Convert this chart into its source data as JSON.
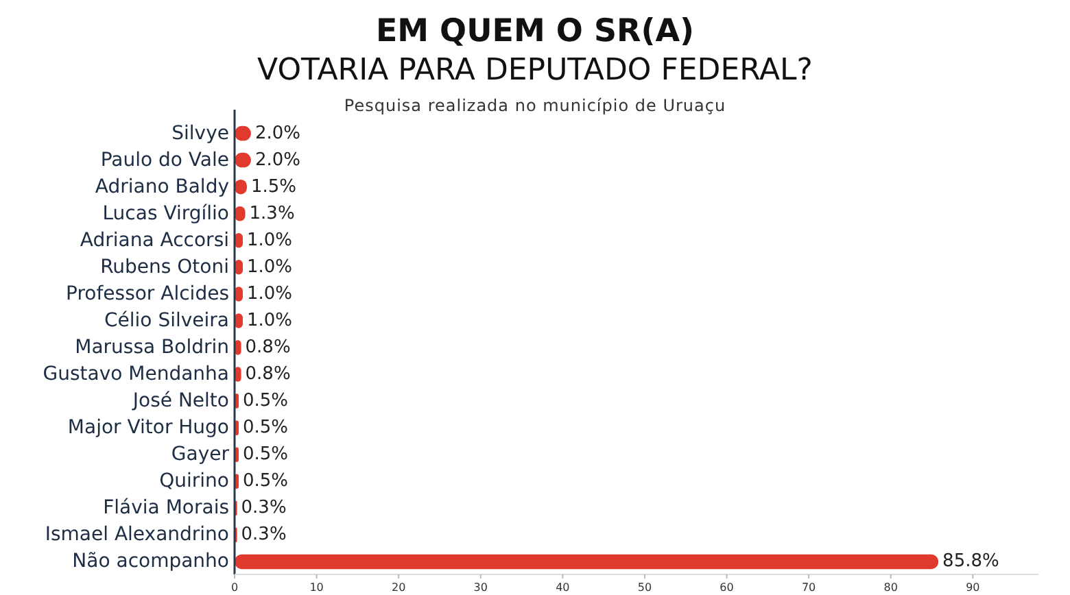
{
  "chart_data": {
    "type": "bar",
    "orientation": "horizontal",
    "title": "EM QUEM O SR(A)\nVOTARIA PARA DEPUTADO FEDERAL?",
    "subtitle": "Pesquisa realizada no município de Uruaçu",
    "categories": [
      "Silvye",
      "Paulo do Vale",
      "Adriano Baldy",
      "Lucas Virgílio",
      "Adriana Accorsi",
      "Rubens Otoni",
      "Professor Alcides",
      "Célio Silveira",
      "Marussa Boldrin",
      "Gustavo Mendanha",
      "José Nelto",
      "Major Vitor Hugo",
      "Gayer",
      "Quirino",
      "Flávia Morais",
      "Ismael Alexandrino",
      "Não acompanho"
    ],
    "values": [
      2.0,
      2.0,
      1.5,
      1.3,
      1.0,
      1.0,
      1.0,
      1.0,
      0.8,
      0.8,
      0.5,
      0.5,
      0.5,
      0.5,
      0.3,
      0.3,
      85.8
    ],
    "value_labels": [
      "2.0%",
      "2.0%",
      "1.5%",
      "1.3%",
      "1.0%",
      "1.0%",
      "1.0%",
      "1.0%",
      "0.8%",
      "0.8%",
      "0.5%",
      "0.5%",
      "0.5%",
      "0.5%",
      "0.3%",
      "0.3%",
      "85.8%"
    ],
    "color": "#e03a2f",
    "xlim": [
      0,
      98
    ],
    "xticks": [
      0,
      10,
      20,
      30,
      40,
      50,
      60,
      70,
      80,
      90
    ],
    "grid": false
  }
}
